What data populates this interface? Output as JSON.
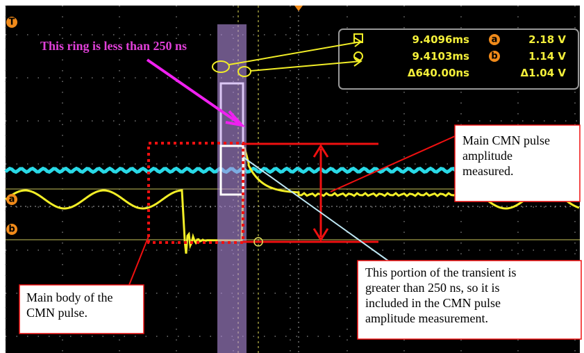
{
  "screen": {
    "trigger_marker": "T",
    "channel_markers": [
      "a",
      "b"
    ]
  },
  "readout": {
    "rows": [
      {
        "time": "9.4096ms",
        "marker": "a",
        "voltage": "2.18 V"
      },
      {
        "time": "9.4103ms",
        "marker": "b",
        "voltage": "1.14 V"
      },
      {
        "time": "Δ640.00ns",
        "voltage": "Δ1.04 V"
      }
    ]
  },
  "annotations": {
    "ring_note": "This ring is less than 250 ns",
    "amplitude_note": [
      "Main CMN pulse",
      "amplitude",
      "measured."
    ],
    "transient_note": [
      "This portion of the transient is",
      "greater than 250 ns, so it is",
      "included in the CMN pulse",
      "amplitude measurement."
    ],
    "body_note": [
      "Main body of the",
      "CMN pulse."
    ]
  }
}
